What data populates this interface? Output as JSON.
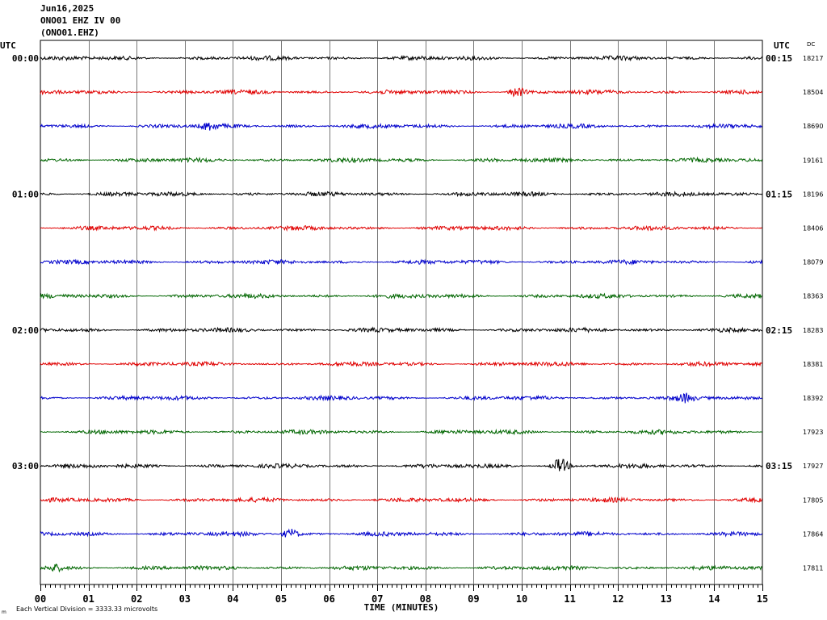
{
  "header": {
    "date": "Jun16,2025",
    "station_line": "ONO01 EHZ IV 00",
    "channel_line": "(ONO01.EHZ)",
    "left_utc_label": "UTC",
    "right_utc_label": "UTC",
    "dc_label": "DC"
  },
  "footer": {
    "scale_note": "Each Vertical Division = 3333.33 microvolts",
    "corner_mark": "m"
  },
  "chart_data": {
    "type": "line",
    "title": "",
    "xlabel": "TIME (MINUTES)",
    "ylabel": "",
    "xlim": [
      0,
      15
    ],
    "x_ticks": [
      "00",
      "01",
      "02",
      "03",
      "04",
      "05",
      "06",
      "07",
      "08",
      "09",
      "10",
      "11",
      "12",
      "13",
      "14",
      "15"
    ],
    "grid": true,
    "trace_colors": [
      "#000000",
      "#e00000",
      "#0000cc",
      "#006600"
    ],
    "rows": [
      {
        "left": "00:00",
        "right": "00:15",
        "dc": "18217"
      },
      {
        "left": "",
        "right": "",
        "dc": "18504"
      },
      {
        "left": "",
        "right": "",
        "dc": "18690"
      },
      {
        "left": "",
        "right": "",
        "dc": "19161"
      },
      {
        "left": "01:00",
        "right": "01:15",
        "dc": "18196"
      },
      {
        "left": "",
        "right": "",
        "dc": "18406"
      },
      {
        "left": "",
        "right": "",
        "dc": "18079"
      },
      {
        "left": "",
        "right": "",
        "dc": "18363"
      },
      {
        "left": "02:00",
        "right": "02:15",
        "dc": "18283"
      },
      {
        "left": "",
        "right": "",
        "dc": "18381"
      },
      {
        "left": "",
        "right": "",
        "dc": "18392"
      },
      {
        "left": "",
        "right": "",
        "dc": "17923"
      },
      {
        "left": "03:00",
        "right": "03:15",
        "dc": "17927"
      },
      {
        "left": "",
        "right": "",
        "dc": "17805"
      },
      {
        "left": "",
        "right": "",
        "dc": "17864"
      },
      {
        "left": "",
        "right": "",
        "dc": "17811"
      }
    ],
    "events": [
      {
        "row": 1,
        "minute": 9.9,
        "amplitude": 6
      },
      {
        "row": 2,
        "minute": 3.5,
        "amplitude": 4
      },
      {
        "row": 10,
        "minute": 13.4,
        "amplitude": 4
      },
      {
        "row": 12,
        "minute": 10.8,
        "amplitude": 9
      },
      {
        "row": 14,
        "minute": 5.2,
        "amplitude": 6
      },
      {
        "row": 15,
        "minute": 0.3,
        "amplitude": 4
      }
    ]
  }
}
